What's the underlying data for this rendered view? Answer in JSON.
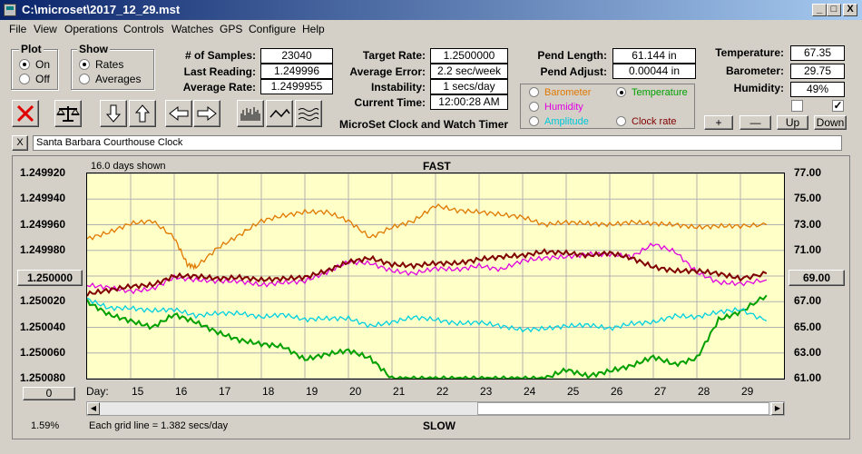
{
  "window": {
    "title": "C:\\microset\\2017_12_29.mst",
    "min": "_",
    "max": "□",
    "close": "X"
  },
  "menu": [
    "File",
    "View",
    "Operations",
    "Controls",
    "Watches",
    "GPS",
    "Configure",
    "Help"
  ],
  "plot_group": {
    "label": "Plot",
    "options": [
      "On",
      "Off"
    ],
    "selected": "On"
  },
  "show_group": {
    "label": "Show",
    "options": [
      "Rates",
      "Averages"
    ],
    "selected": "Rates"
  },
  "stats": [
    {
      "label": "# of Samples:",
      "value": "23040"
    },
    {
      "label": "Last Reading:",
      "value": "1.249996"
    },
    {
      "label": "Average Rate:",
      "value": "1.2499955"
    }
  ],
  "rates": [
    {
      "label": "Target Rate:",
      "value": "1.2500000"
    },
    {
      "label": "Average Error:",
      "value": "2.2 sec/week"
    },
    {
      "label": "Instability:",
      "value": "1 secs/day"
    },
    {
      "label": "Current Time:",
      "value": "12:00:28 AM"
    }
  ],
  "app_subtitle": "MicroSet Clock and Watch Timer",
  "pendulum": [
    {
      "label": "Pend Length:",
      "value": "61.144 in"
    },
    {
      "label": "Pend Adjust:",
      "value": "0.00044 in"
    }
  ],
  "environment": [
    {
      "label": "Temperature:",
      "value": "67.35"
    },
    {
      "label": "Barometer:",
      "value": "29.75"
    },
    {
      "label": "Humidity:",
      "value": "49%"
    }
  ],
  "checkbox_2_mark": "✓",
  "legend": [
    {
      "label": "Barometer",
      "color": "#e07800",
      "selected": false
    },
    {
      "label": "Temperature",
      "color": "#00a000",
      "selected": true
    },
    {
      "label": "Humidity",
      "color": "#e000e0",
      "selected": false
    },
    {
      "label": "Clock rate",
      "color": "#800000",
      "selected": false
    },
    {
      "label": "Amplitude",
      "color": "#00d0e0",
      "selected": false
    }
  ],
  "adjust_buttons": [
    "+",
    "—",
    "Up",
    "Down"
  ],
  "clock_close": "X",
  "clock_name": "Santa Barbara Courthouse Clock",
  "chart_labels": {
    "days_shown": "16.0 days shown",
    "top": "FAST",
    "bottom": "SLOW",
    "grid_note": "Each grid line = 1.382 secs/day",
    "percent": "1.59%",
    "day_prefix": "Day:",
    "left_button": "1.250000",
    "right_button": "69.00",
    "zero_button": "0"
  },
  "chart_data": {
    "type": "line",
    "x_days": [
      15,
      16,
      17,
      18,
      19,
      20,
      21,
      22,
      23,
      24,
      25,
      26,
      27,
      28,
      29
    ],
    "y_left_ticks": [
      "1.249920",
      "1.249940",
      "1.249960",
      "1.249980",
      "1.250000",
      "1.250020",
      "1.250040",
      "1.250060",
      "1.250080"
    ],
    "y_right_ticks": [
      "77.00",
      "75.00",
      "73.00",
      "71.00",
      "69.00",
      "67.00",
      "65.00",
      "63.00",
      "61.00"
    ],
    "ylim_left": [
      1.24992,
      1.25008
    ],
    "ylim_right": [
      61,
      77
    ],
    "xlim": [
      14,
      30
    ],
    "series": [
      {
        "name": "Barometer",
        "color": "#e07800",
        "x": [
          14,
          14.5,
          15,
          15.5,
          16,
          16.3,
          16.5,
          17,
          17.5,
          18,
          18.5,
          19,
          19.5,
          20,
          20.5,
          21,
          21.5,
          22,
          22.5,
          23,
          23.5,
          24,
          24.5,
          25,
          25.5,
          26,
          26.5,
          27,
          27.5,
          28,
          28.5,
          29,
          29.6
        ],
        "y": [
          71.9,
          72.4,
          73.1,
          73.3,
          72.0,
          69.9,
          69.7,
          71.2,
          72.2,
          73.3,
          73.7,
          74.0,
          74.0,
          73.3,
          72.0,
          72.8,
          73.3,
          74.5,
          74.1,
          74.0,
          73.8,
          73.6,
          73.0,
          73.2,
          73.1,
          73.0,
          73.2,
          73.1,
          73.0,
          72.8,
          72.9,
          72.9,
          73.0
        ]
      },
      {
        "name": "Temperature",
        "color": "#00a000",
        "x": [
          14,
          14.5,
          15,
          15.5,
          16,
          16.5,
          17,
          17.5,
          18,
          18.5,
          19,
          19.5,
          20,
          20.5,
          21,
          21.5,
          22,
          22.5,
          23,
          23.5,
          24,
          24.5,
          25,
          25.5,
          26,
          26.5,
          27,
          27.5,
          28,
          28.5,
          29,
          29.6
        ],
        "y": [
          67.0,
          66.0,
          65.5,
          65.0,
          66.0,
          65.4,
          64.6,
          64.0,
          63.7,
          63.5,
          62.5,
          62.9,
          63.2,
          62.6,
          61.0,
          61.0,
          61.0,
          61.0,
          61.0,
          61.0,
          61.0,
          61.0,
          61.7,
          61.2,
          61.6,
          62.0,
          62.7,
          62.1,
          62.6,
          65.6,
          66.2,
          67.5
        ]
      },
      {
        "name": "Humidity",
        "color": "#e000e0",
        "x": [
          14,
          14.5,
          15,
          15.5,
          16,
          16.5,
          17,
          17.5,
          18,
          18.5,
          19,
          19.5,
          20,
          20.5,
          21,
          21.5,
          22,
          22.5,
          23,
          23.5,
          24,
          24.5,
          25,
          25.5,
          26,
          26.5,
          27,
          27.5,
          28,
          28.5,
          29,
          29.6
        ],
        "y": [
          68.3,
          68.1,
          67.8,
          68.0,
          68.9,
          68.7,
          68.6,
          68.6,
          68.3,
          68.5,
          68.6,
          69.3,
          70.1,
          70.0,
          69.4,
          69.2,
          69.6,
          69.5,
          69.8,
          69.5,
          70.2,
          70.4,
          70.5,
          70.7,
          70.7,
          70.5,
          71.5,
          70.9,
          69.3,
          68.5,
          68.4,
          68.7
        ]
      },
      {
        "name": "Clock rate",
        "color": "#800000",
        "x": [
          14,
          14.5,
          15,
          15.5,
          16,
          16.5,
          17,
          17.5,
          18,
          18.5,
          19,
          19.5,
          20,
          20.5,
          21,
          21.5,
          22,
          22.5,
          23,
          23.5,
          24,
          24.5,
          25,
          25.5,
          26,
          26.5,
          27,
          27.5,
          28,
          28.5,
          29,
          29.6
        ],
        "y": [
          67.6,
          67.9,
          68.2,
          68.3,
          69.0,
          69.0,
          68.8,
          68.9,
          68.7,
          68.8,
          68.9,
          69.4,
          70.1,
          70.4,
          69.9,
          69.8,
          70.0,
          70.0,
          70.3,
          70.5,
          70.6,
          70.9,
          70.8,
          70.6,
          70.8,
          70.4,
          69.7,
          69.4,
          69.4,
          69.2,
          68.8,
          69.2
        ]
      },
      {
        "name": "Amplitude",
        "color": "#00d0e0",
        "x": [
          14,
          14.5,
          15,
          15.5,
          16,
          16.5,
          17,
          17.5,
          18,
          18.5,
          19,
          19.5,
          20,
          20.5,
          21,
          21.5,
          22,
          22.5,
          23,
          23.5,
          24,
          24.5,
          25,
          25.5,
          26,
          26.5,
          27,
          27.5,
          28,
          28.5,
          29,
          29.6
        ],
        "y": [
          67.2,
          66.5,
          66.5,
          66.3,
          66.4,
          65.9,
          66.1,
          66.1,
          65.8,
          66.0,
          65.6,
          65.7,
          65.7,
          65.1,
          65.4,
          65.8,
          65.6,
          65.3,
          65.4,
          65.1,
          64.8,
          64.9,
          65.1,
          65.2,
          64.9,
          65.3,
          65.4,
          65.9,
          65.8,
          66.2,
          66.4,
          65.5
        ]
      }
    ]
  }
}
